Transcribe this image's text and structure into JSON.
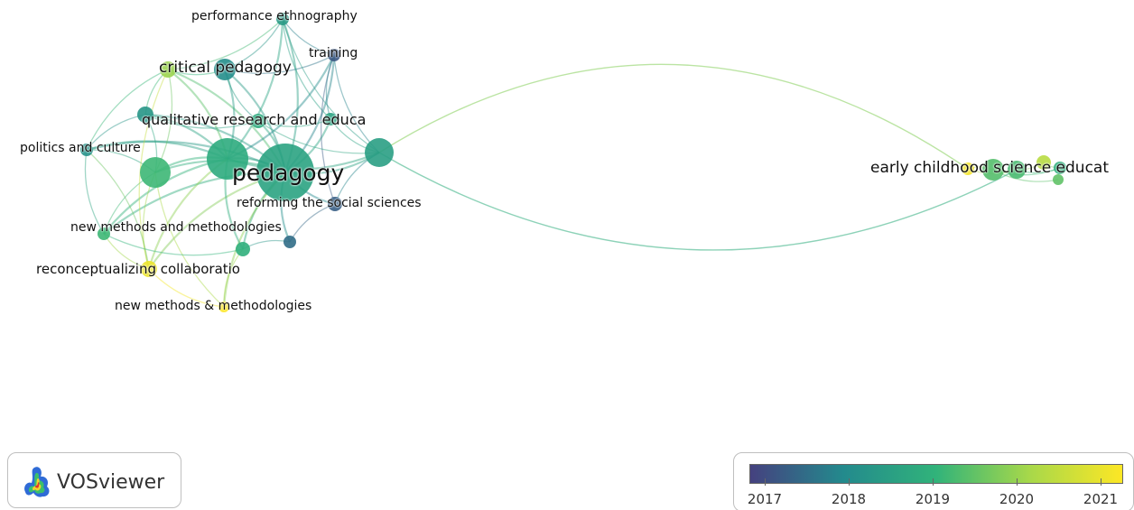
{
  "colors": {
    "scale_2017": "#45417f",
    "scale_2018": "#238a8d",
    "scale_2019": "#31b37a",
    "scale_2020": "#a7d84a",
    "scale_2021": "#fde725"
  },
  "nodes": [
    {
      "id": "n_perf",
      "label": "performance ethnography",
      "year": 2018.4
    },
    {
      "id": "n_training",
      "label": "training",
      "year": 2017.3
    },
    {
      "id": "n_critical",
      "label": "critical pedagogy",
      "year": 2019.9
    },
    {
      "id": "n_critical2",
      "label": "",
      "year": 2018.1
    },
    {
      "id": "n_qual",
      "label": "qualitative research and educa",
      "year": 2018.3
    },
    {
      "id": "n_qual2",
      "label": "",
      "year": 2018.8
    },
    {
      "id": "n_qual3",
      "label": "",
      "year": 2018.6
    },
    {
      "id": "n_politics",
      "label": "politics and culture",
      "year": 2018.2
    },
    {
      "id": "n_pedagogy",
      "label": "pedagogy",
      "year": 2018.6
    },
    {
      "id": "n_hub2",
      "label": "",
      "year": 2018.8
    },
    {
      "id": "n_green1",
      "label": "",
      "year": 2019.1
    },
    {
      "id": "n_right",
      "label": "",
      "year": 2018.5
    },
    {
      "id": "n_reform",
      "label": "reforming the social sciences",
      "year": 2017.4
    },
    {
      "id": "n_blue2",
      "label": "",
      "year": 2017.6
    },
    {
      "id": "n_newmeth",
      "label": "new methods and methodologies",
      "year": 2019.1
    },
    {
      "id": "n_green2",
      "label": "",
      "year": 2018.9
    },
    {
      "id": "n_recon",
      "label": "reconceptualizing collaboratio",
      "year": 2020.8
    },
    {
      "id": "n_newmeth2",
      "label": "new methods & methodologies",
      "year": 2021.0
    },
    {
      "id": "n_ecse",
      "label": "early childhood science educat",
      "year": 2019.3
    },
    {
      "id": "n_ec_y",
      "label": "",
      "year": 2020.9
    },
    {
      "id": "n_ec_g",
      "label": "",
      "year": 2019.2
    },
    {
      "id": "n_ec_lg",
      "label": "",
      "year": 2020.2
    },
    {
      "id": "n_ec_t",
      "label": "",
      "year": 2018.9
    },
    {
      "id": "n_ec_g2",
      "label": "",
      "year": 2019.4
    }
  ],
  "links": [
    [
      "n_pedagogy",
      "n_hub2"
    ],
    [
      "n_pedagogy",
      "n_green1"
    ],
    [
      "n_pedagogy",
      "n_qual"
    ],
    [
      "n_pedagogy",
      "n_qual2"
    ],
    [
      "n_pedagogy",
      "n_qual3"
    ],
    [
      "n_pedagogy",
      "n_critical"
    ],
    [
      "n_pedagogy",
      "n_critical2"
    ],
    [
      "n_pedagogy",
      "n_perf"
    ],
    [
      "n_pedagogy",
      "n_training"
    ],
    [
      "n_pedagogy",
      "n_right"
    ],
    [
      "n_pedagogy",
      "n_reform"
    ],
    [
      "n_pedagogy",
      "n_blue2"
    ],
    [
      "n_pedagogy",
      "n_newmeth"
    ],
    [
      "n_pedagogy",
      "n_green2"
    ],
    [
      "n_pedagogy",
      "n_recon"
    ],
    [
      "n_pedagogy",
      "n_newmeth2"
    ],
    [
      "n_pedagogy",
      "n_politics"
    ],
    [
      "n_hub2",
      "n_green1"
    ],
    [
      "n_hub2",
      "n_qual"
    ],
    [
      "n_hub2",
      "n_critical"
    ],
    [
      "n_hub2",
      "n_critical2"
    ],
    [
      "n_hub2",
      "n_politics"
    ],
    [
      "n_hub2",
      "n_perf"
    ],
    [
      "n_hub2",
      "n_training"
    ],
    [
      "n_hub2",
      "n_right"
    ],
    [
      "n_hub2",
      "n_newmeth"
    ],
    [
      "n_hub2",
      "n_recon"
    ],
    [
      "n_hub2",
      "n_green2"
    ],
    [
      "n_green1",
      "n_politics"
    ],
    [
      "n_green1",
      "n_qual"
    ],
    [
      "n_green1",
      "n_newmeth"
    ],
    [
      "n_green1",
      "n_recon"
    ],
    [
      "n_green1",
      "n_newmeth2"
    ],
    [
      "n_green1",
      "n_critical"
    ],
    [
      "n_critical",
      "n_critical2"
    ],
    [
      "n_critical",
      "n_qual"
    ],
    [
      "n_critical",
      "n_perf"
    ],
    [
      "n_critical",
      "n_politics"
    ],
    [
      "n_critical",
      "n_recon"
    ],
    [
      "n_critical2",
      "n_perf"
    ],
    [
      "n_critical2",
      "n_training"
    ],
    [
      "n_critical2",
      "n_qual2"
    ],
    [
      "n_perf",
      "n_training"
    ],
    [
      "n_perf",
      "n_qual3"
    ],
    [
      "n_perf",
      "n_right"
    ],
    [
      "n_training",
      "n_reform"
    ],
    [
      "n_training",
      "n_qual3"
    ],
    [
      "n_training",
      "n_right"
    ],
    [
      "n_qual",
      "n_qual2"
    ],
    [
      "n_qual",
      "n_politics"
    ],
    [
      "n_qual2",
      "n_qual3"
    ],
    [
      "n_qual3",
      "n_right"
    ],
    [
      "n_right",
      "n_reform"
    ],
    [
      "n_reform",
      "n_blue2"
    ],
    [
      "n_newmeth",
      "n_recon"
    ],
    [
      "n_newmeth",
      "n_green2"
    ],
    [
      "n_recon",
      "n_newmeth2"
    ],
    [
      "n_green2",
      "n_newmeth2"
    ],
    [
      "n_politics",
      "n_newmeth"
    ],
    [
      "n_recon",
      "n_politics"
    ],
    [
      "n_blue2",
      "n_green2"
    ],
    [
      "n_qual2",
      "n_right"
    ],
    [
      "n_ecse",
      "n_ec_y"
    ],
    [
      "n_ecse",
      "n_ec_g"
    ],
    [
      "n_ecse",
      "n_ec_lg"
    ],
    [
      "n_ecse",
      "n_ec_t"
    ],
    [
      "n_ecse",
      "n_ec_g2"
    ],
    [
      "n_ec_g",
      "n_ec_t"
    ],
    [
      "n_ec_lg",
      "n_ec_t"
    ],
    [
      "n_ec_y",
      "n_ec_g"
    ]
  ],
  "long_links": [
    [
      "n_right",
      "n_ec_y"
    ],
    [
      "n_right",
      "n_ec_g"
    ]
  ],
  "legend": {
    "ticks": [
      "2017",
      "2018",
      "2019",
      "2020",
      "2021"
    ]
  },
  "logo": {
    "text": "VOSviewer"
  }
}
